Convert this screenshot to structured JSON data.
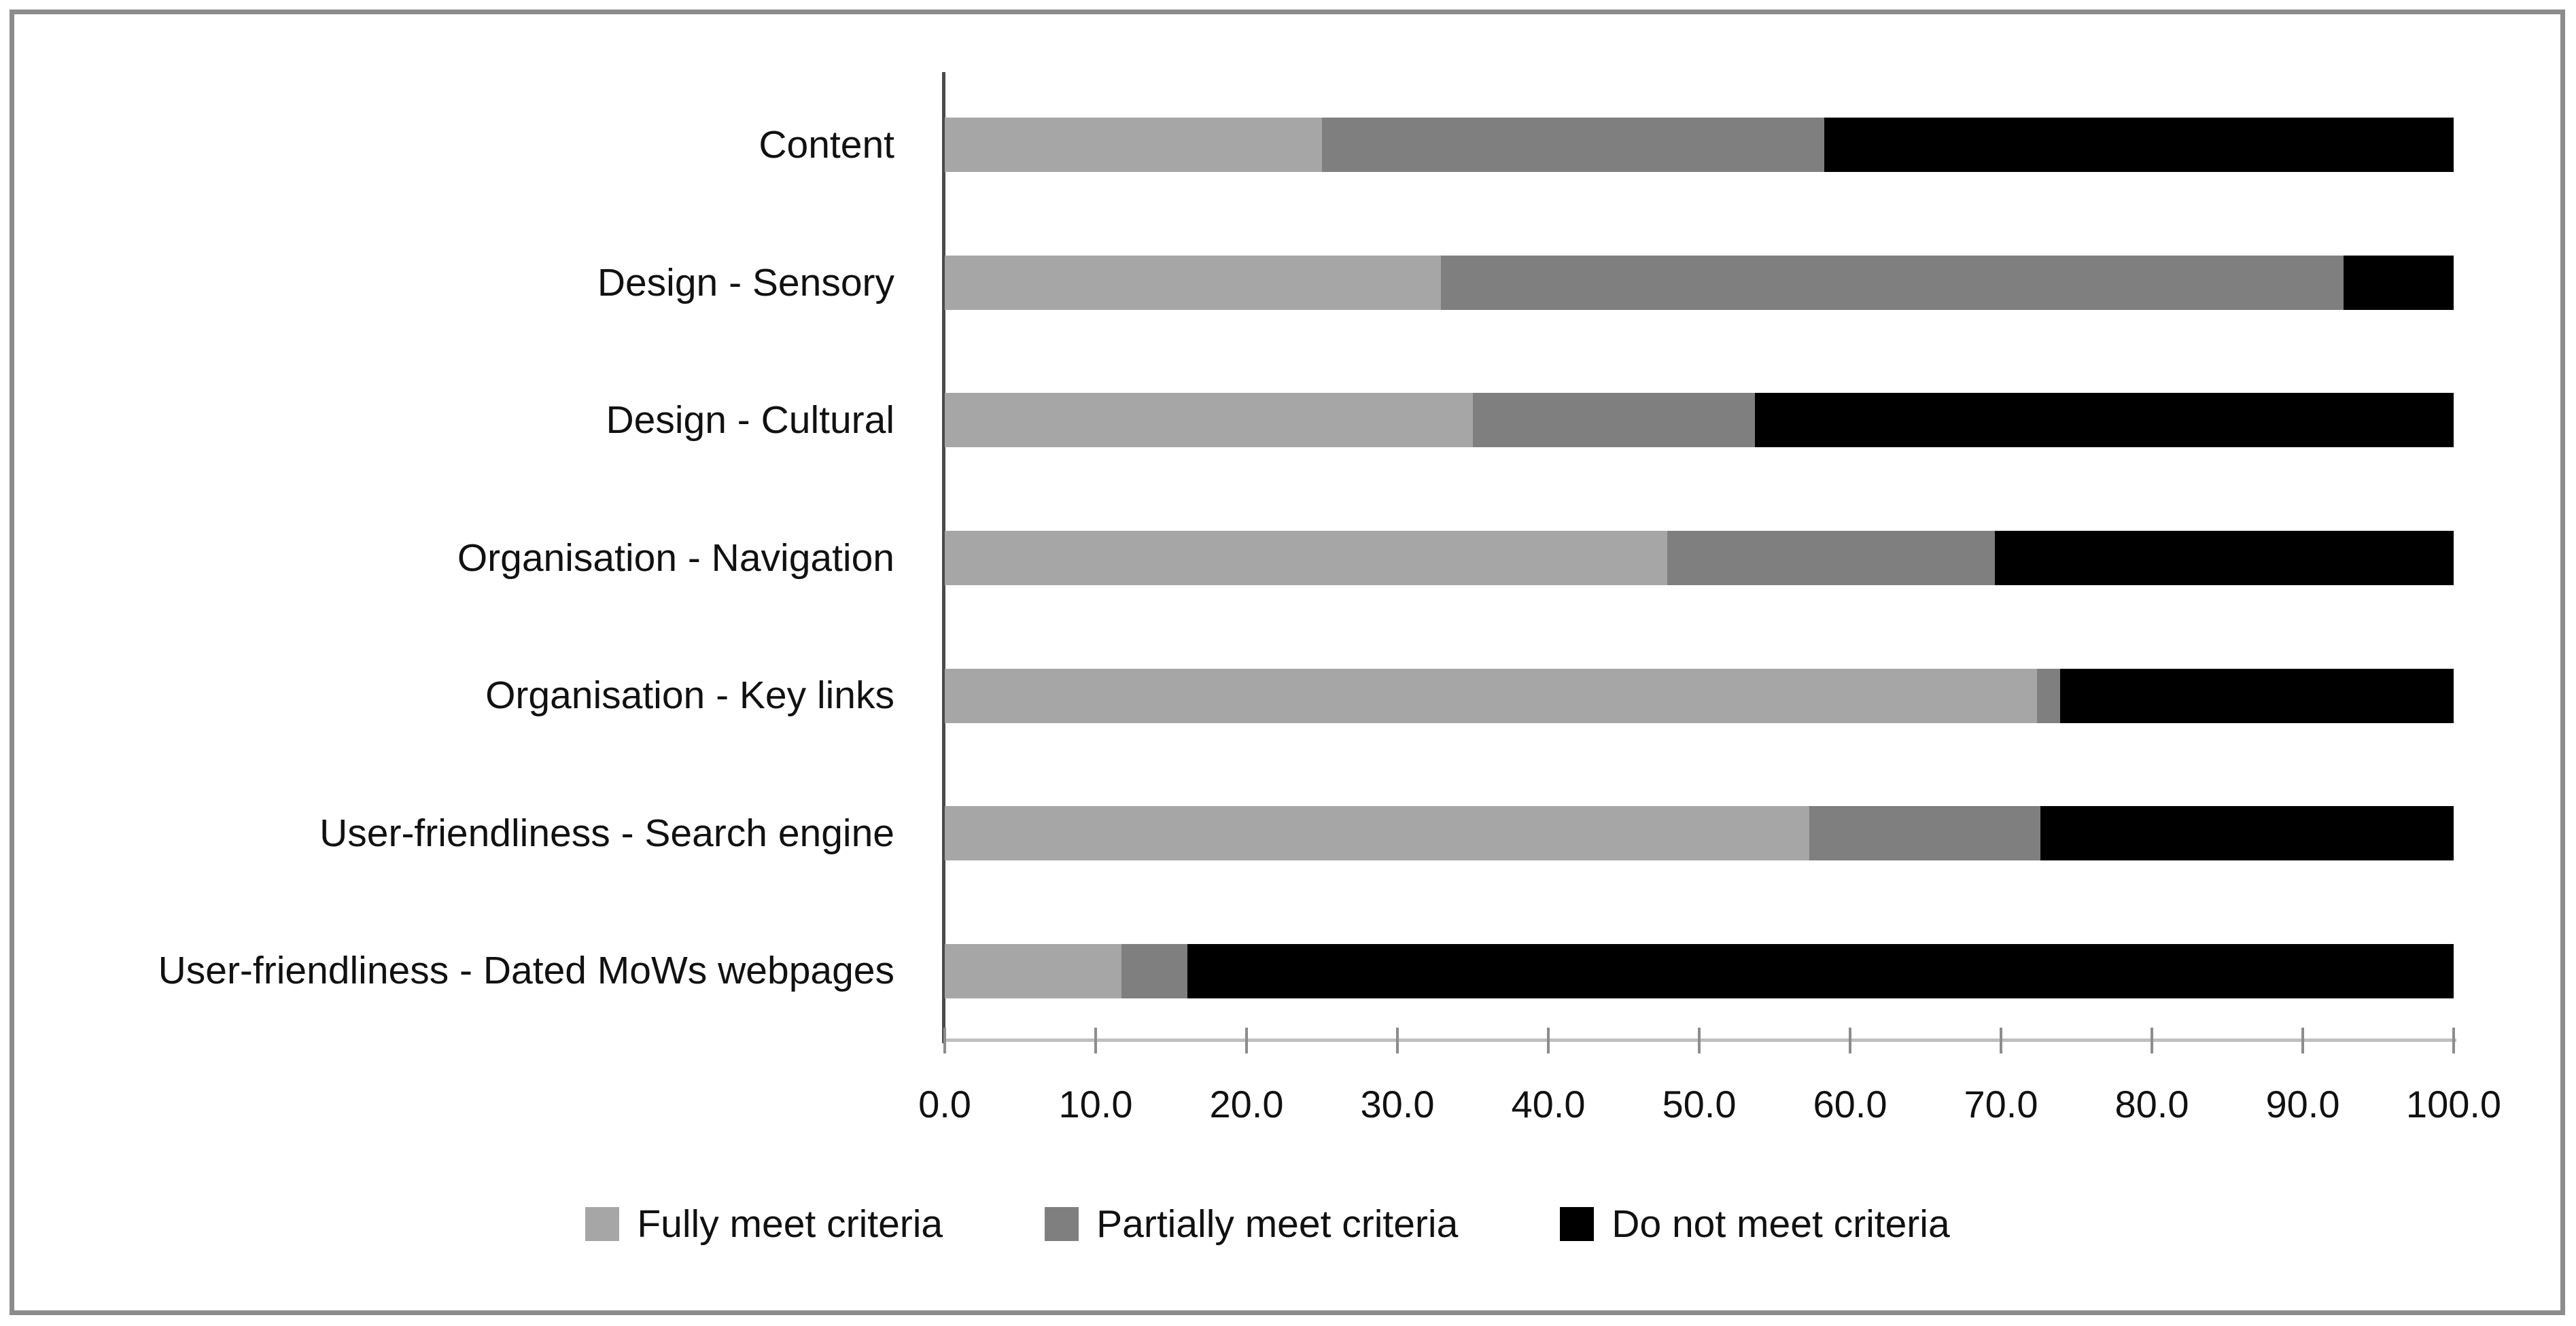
{
  "chart_data": {
    "type": "bar",
    "orientation": "horizontal",
    "stacked": true,
    "title": "",
    "xlabel": "",
    "ylabel": "",
    "grid": false,
    "legend_position": "bottom",
    "xlim": [
      0,
      100
    ],
    "x_ticks": [
      "0.0",
      "10.0",
      "20.0",
      "30.0",
      "40.0",
      "50.0",
      "60.0",
      "70.0",
      "80.0",
      "90.0",
      "100.0"
    ],
    "categories": [
      "Content",
      "Design - Sensory",
      "Design - Cultural",
      "Organisation - Navigation",
      "Organisation - Key links",
      "User-friendliness - Search engine",
      "User-friendliness - Dated MoWs webpages"
    ],
    "series": [
      {
        "name": "Fully meet criteria",
        "color": "#a6a6a6",
        "values": [
          25.0,
          32.9,
          35.0,
          47.9,
          72.4,
          57.3,
          11.7
        ]
      },
      {
        "name": "Partially meet criteria",
        "color": "#7f7f7f",
        "values": [
          33.3,
          59.8,
          18.7,
          21.7,
          1.5,
          15.3,
          4.4
        ]
      },
      {
        "name": "Do not meet criteria",
        "color": "#000000",
        "values": [
          41.7,
          7.3,
          46.3,
          30.4,
          26.1,
          27.4,
          83.9
        ]
      }
    ]
  },
  "colors": {
    "frame_border": "#8c8c8c",
    "y_axis": "#4a4a4a",
    "x_axis": "#bfbfbf",
    "tick": "#8c8c8c"
  }
}
